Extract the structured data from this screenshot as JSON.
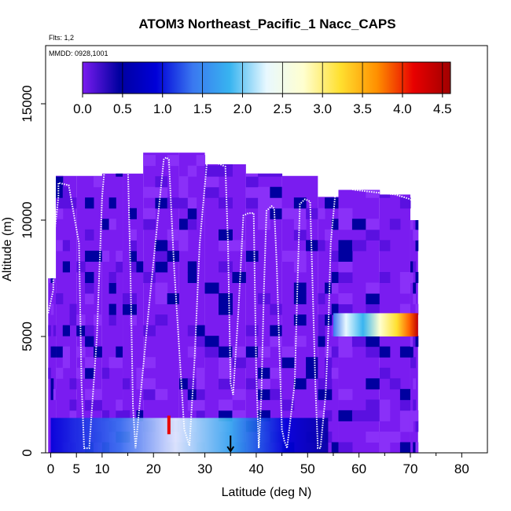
{
  "chart_data": {
    "type": "heatmap",
    "title": "ATOM3 Northeast_Pacific_1 Nacc_CAPS",
    "subtitle_flights": "Flts: 1,2",
    "subtitle_dates": "MMDD: 0928,1001",
    "xlabel": "Latitude (deg N)",
    "ylabel": "Altitude (m)",
    "xlim": [
      -1,
      85
    ],
    "ylim": [
      0,
      17500
    ],
    "x_ticks": [
      0,
      5,
      10,
      20,
      30,
      40,
      50,
      60,
      70,
      80
    ],
    "y_ticks": [
      0,
      5000,
      10000,
      15000
    ],
    "colorbar": {
      "min": 0.0,
      "max": 4.6,
      "ticks": [
        0.0,
        0.5,
        1.0,
        1.5,
        2.0,
        2.5,
        3.0,
        3.5,
        4.0,
        4.5
      ],
      "tick_labels": [
        "0.0",
        "0.5",
        "1.0",
        "1.5",
        "2.0",
        "2.5",
        "3.0",
        "3.5",
        "4.0",
        "4.5"
      ],
      "colors": [
        "#7a1cf0",
        "#0000a0",
        "#0000d8",
        "#3a78f0",
        "#38b4f0",
        "#e8f8ff",
        "#ffffd0",
        "#ffe030",
        "#ff9000",
        "#e80000",
        "#a00000"
      ]
    },
    "columns": [
      {
        "lat0": -0.5,
        "lat1": 1,
        "alt_top": 7500
      },
      {
        "lat0": 1,
        "lat1": 5,
        "alt_top": 11900
      },
      {
        "lat0": 5,
        "lat1": 10,
        "alt_top": 11900
      },
      {
        "lat0": 10,
        "lat1": 14,
        "alt_top": 12000
      },
      {
        "lat0": 14,
        "lat1": 18,
        "alt_top": 12000
      },
      {
        "lat0": 18,
        "lat1": 25,
        "alt_top": 12900
      },
      {
        "lat0": 25,
        "lat1": 30,
        "alt_top": 12900
      },
      {
        "lat0": 30,
        "lat1": 38,
        "alt_top": 12400
      },
      {
        "lat0": 38,
        "lat1": 45,
        "alt_top": 12000
      },
      {
        "lat0": 45,
        "lat1": 52,
        "alt_top": 11900
      },
      {
        "lat0": 52,
        "lat1": 56,
        "alt_top": 11000
      },
      {
        "lat0": 56,
        "lat1": 64,
        "alt_top": 11300
      },
      {
        "lat0": 64,
        "lat1": 70,
        "alt_top": 11100
      },
      {
        "lat0": 70,
        "lat1": 71.5,
        "alt_top": 10000
      }
    ],
    "features": [
      {
        "name": "high value plume",
        "lat0": 55,
        "lat1": 71.5,
        "alt0": 5000,
        "alt1": 6000,
        "peak_value": 4.4
      },
      {
        "name": "boundary layer",
        "lat0": 0,
        "lat1": 54,
        "alt0": 0,
        "alt1": 1500,
        "peak_value": 2.0
      },
      {
        "name": "spike near 23N",
        "lat": 23,
        "alt": 1200,
        "value": 3.9
      }
    ],
    "flight_track": {
      "lat": [
        -0.5,
        0.5,
        0.5,
        1.5,
        1.5,
        3.5,
        5.5,
        6,
        6.5,
        7.5,
        9,
        10,
        10.5,
        11.5,
        12,
        15,
        15.5,
        16,
        16.5,
        19,
        22,
        22.5,
        23,
        24,
        26,
        27,
        28,
        29,
        30.5,
        31.5,
        33,
        34,
        34.5,
        35,
        35.5,
        36.5,
        37.5,
        38.5,
        39.5,
        40,
        40.5,
        41,
        41.5,
        42,
        43,
        43.5,
        44,
        45,
        45.5,
        46,
        47.5,
        48,
        48.5,
        49.5,
        50.5,
        51,
        51.5,
        52,
        52.5,
        53.5,
        54,
        54.5,
        55.5,
        56,
        56.5,
        59,
        63,
        67,
        70,
        70.5
      ],
      "alt": [
        6000,
        7000,
        9000,
        11000,
        11600,
        11500,
        9000,
        3000,
        200,
        200,
        5000,
        11000,
        12300,
        12400,
        12400,
        12400,
        8000,
        2000,
        200,
        6000,
        12600,
        12700,
        12600,
        8000,
        1000,
        300,
        4000,
        9000,
        12700,
        12500,
        12400,
        12300,
        9000,
        3000,
        2500,
        6000,
        10200,
        10300,
        10300,
        3500,
        200,
        2500,
        7000,
        10400,
        10600,
        10500,
        8000,
        1000,
        500,
        200,
        3000,
        7000,
        10700,
        10900,
        10800,
        7000,
        3000,
        200,
        200,
        2500,
        5000,
        9000,
        11400,
        11500,
        11500,
        11300,
        11200,
        11100,
        10900,
        10800
      ]
    },
    "arrow_marker_lat": 35
  }
}
